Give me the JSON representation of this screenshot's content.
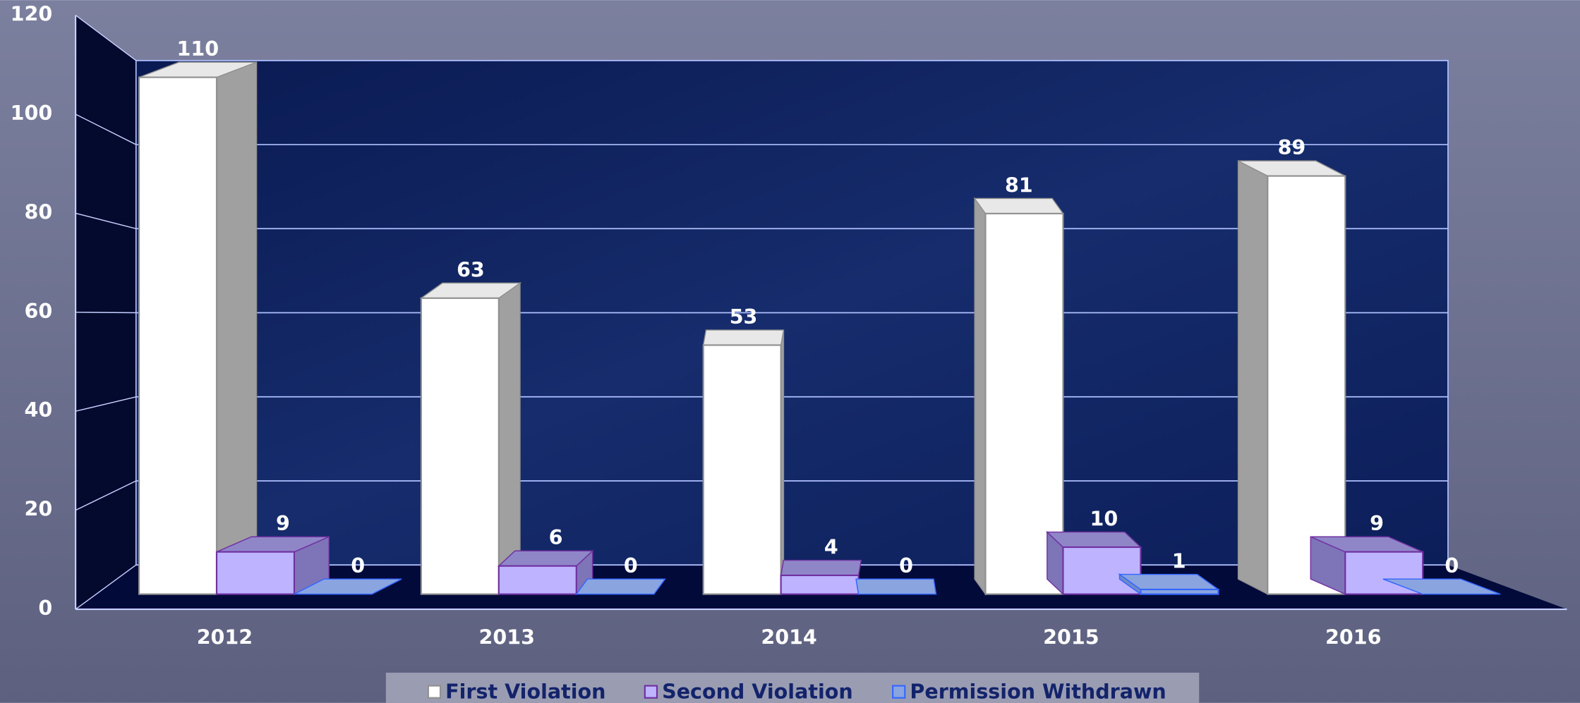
{
  "chart_data": {
    "type": "bar3d",
    "categories": [
      "2012",
      "2013",
      "2014",
      "2015",
      "2016"
    ],
    "series": [
      {
        "name": "First Violation",
        "color": "#ffffff",
        "values": [
          110,
          63,
          53,
          81,
          89
        ]
      },
      {
        "name": "Second Violation",
        "color": "#bdb3ff",
        "values": [
          9,
          6,
          4,
          10,
          9
        ]
      },
      {
        "name": "Permission Withdrawn",
        "color": "#8aa4e0",
        "values": [
          0,
          0,
          0,
          1,
          0
        ]
      }
    ],
    "ylim": [
      0,
      120
    ],
    "yticks": [
      0,
      20,
      40,
      60,
      80,
      100,
      120
    ],
    "grid": true,
    "legend": "bottom"
  }
}
